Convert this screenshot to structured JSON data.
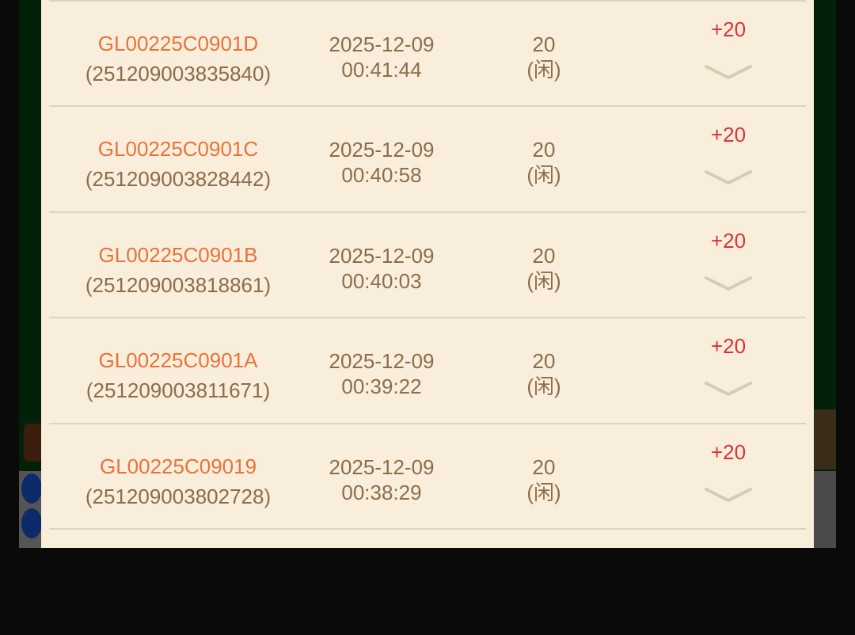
{
  "records": [
    {
      "code": "GL00225C0901D",
      "serial": "(251209003835840)",
      "date": "2025-12-09",
      "time": "00:41:44",
      "amount": "20",
      "side": "(闲)",
      "result": "+20"
    },
    {
      "code": "GL00225C0901C",
      "serial": "(251209003828442)",
      "date": "2025-12-09",
      "time": "00:40:58",
      "amount": "20",
      "side": "(闲)",
      "result": "+20"
    },
    {
      "code": "GL00225C0901B",
      "serial": "(251209003818861)",
      "date": "2025-12-09",
      "time": "00:40:03",
      "amount": "20",
      "side": "(闲)",
      "result": "+20"
    },
    {
      "code": "GL00225C0901A",
      "serial": "(251209003811671)",
      "date": "2025-12-09",
      "time": "00:39:22",
      "amount": "20",
      "side": "(闲)",
      "result": "+20"
    },
    {
      "code": "GL00225C09019",
      "serial": "(251209003802728)",
      "date": "2025-12-09",
      "time": "00:38:29",
      "amount": "20",
      "side": "(闲)",
      "result": "+20"
    }
  ],
  "icons": {
    "expand": "chevron-down-icon"
  },
  "colors": {
    "code": "#e8733a",
    "text": "#8c6d4b",
    "positive": "#d8343a",
    "panel": "#f9eedb"
  }
}
